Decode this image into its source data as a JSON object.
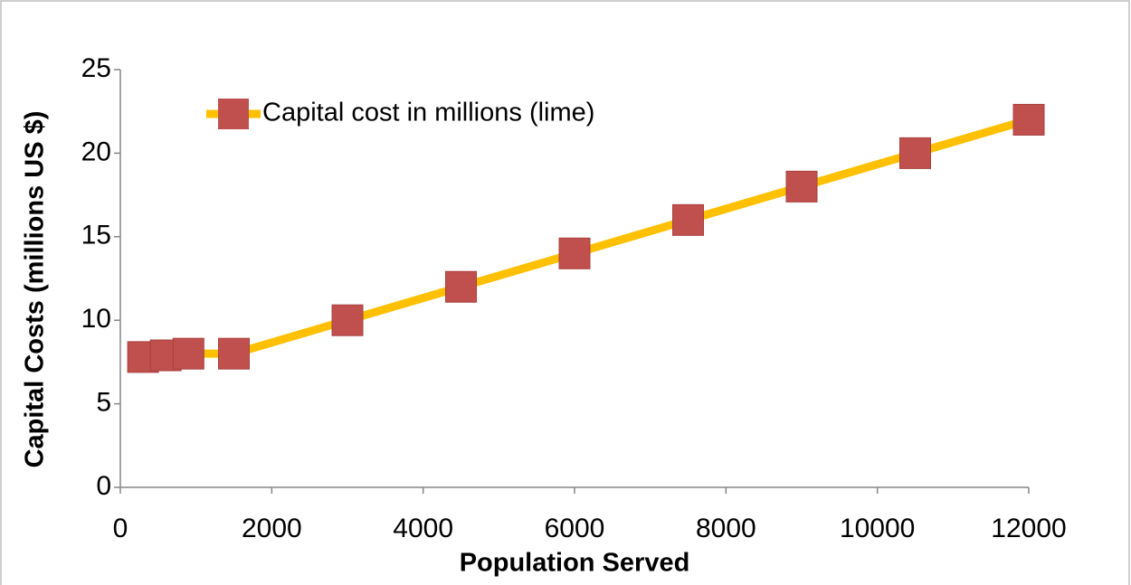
{
  "chart_data": {
    "type": "line",
    "x_label": "Population Served",
    "y_label": "Capital Costs (millions US $)",
    "x": [
      300,
      600,
      900,
      1500,
      3000,
      4500,
      6000,
      7500,
      9000,
      10500,
      12000
    ],
    "series": [
      {
        "name": "Capital cost in millions (lime)",
        "color": "#FFC000",
        "marker_color": "#C0504D",
        "values": [
          7.8,
          7.9,
          8,
          8,
          10,
          12,
          14,
          16,
          18,
          20,
          22
        ]
      }
    ],
    "xlim": [
      0,
      12000
    ],
    "xticks": [
      0,
      2000,
      4000,
      6000,
      8000,
      10000,
      12000
    ],
    "ylim": [
      0,
      25
    ],
    "yticks": [
      0,
      5,
      10,
      15,
      20,
      25
    ],
    "grid": false,
    "legend": "upper left"
  }
}
